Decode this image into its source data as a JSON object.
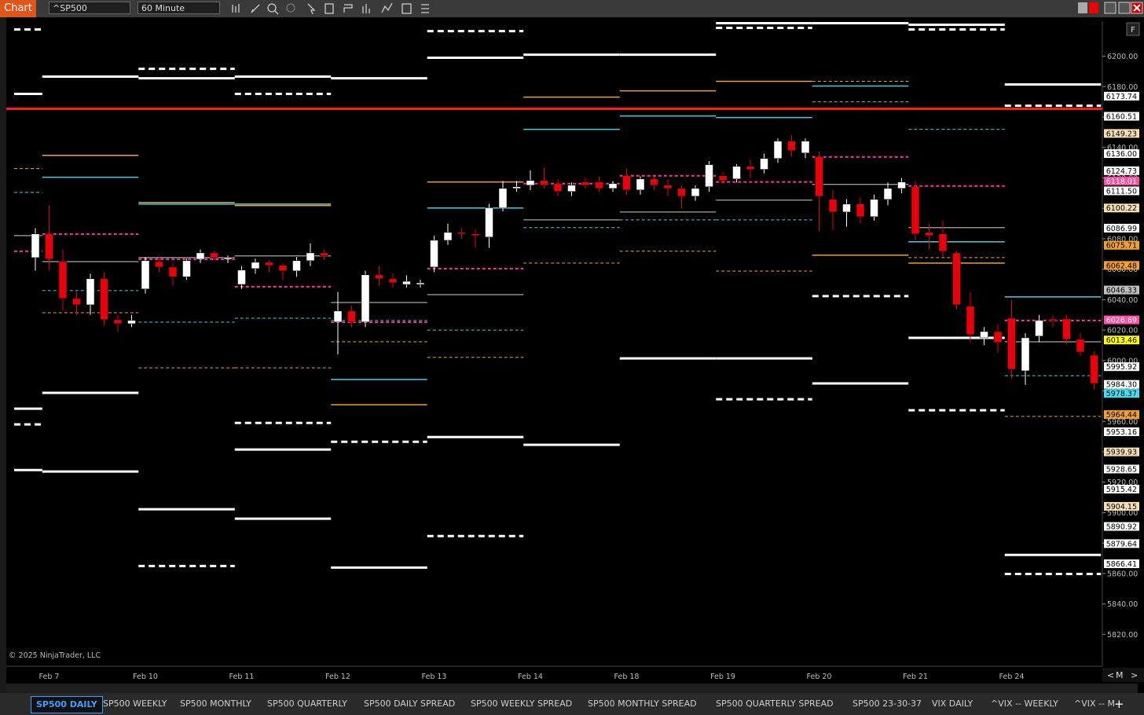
{
  "toolbar": {
    "app": "Chart",
    "symbol": "^SP500",
    "interval": "60 Minute"
  },
  "chart_data": {
    "type": "candlestick",
    "copyright": "© 2025 NinjaTrader, LLC",
    "ylim": [
      5799,
      6223
    ],
    "yticks": [
      {
        "value": 6200,
        "label": "6200.00"
      },
      {
        "value": 6180,
        "label": "6180.00"
      },
      {
        "value": 6160,
        "label": "6160.00"
      },
      {
        "value": 6140,
        "label": "6140.00"
      },
      {
        "value": 6120,
        "label": "6120.00"
      },
      {
        "value": 6100,
        "label": "6100.00"
      },
      {
        "value": 6080,
        "label": "6080.00"
      },
      {
        "value": 6060,
        "label": "6060.00"
      },
      {
        "value": 6040,
        "label": "6040.00"
      },
      {
        "value": 6020,
        "label": "6020.00"
      },
      {
        "value": 6000,
        "label": "6000.00"
      },
      {
        "value": 5980,
        "label": "5980.00"
      },
      {
        "value": 5960,
        "label": "5960.00"
      },
      {
        "value": 5940,
        "label": "5940.00"
      },
      {
        "value": 5920,
        "label": "5920.00"
      },
      {
        "value": 5900,
        "label": "5900.00"
      },
      {
        "value": 5880,
        "label": "5880.00"
      },
      {
        "value": 5860,
        "label": "5860.00"
      },
      {
        "value": 5840,
        "label": "5840.00"
      },
      {
        "value": 5820,
        "label": "5820.00"
      }
    ],
    "grid": false,
    "up_color": "#ffffff",
    "down_color": "#e8000b",
    "categories": [
      null,
      "Feb 7",
      null,
      null,
      null,
      null,
      null,
      null,
      "Feb 10",
      null,
      null,
      null,
      null,
      null,
      null,
      "Feb 11",
      null,
      null,
      null,
      null,
      null,
      null,
      "Feb 12",
      null,
      null,
      null,
      null,
      null,
      null,
      "Feb 13",
      null,
      null,
      null,
      null,
      null,
      null,
      "Feb 14",
      null,
      null,
      null,
      null,
      null,
      null,
      "Feb 18",
      null,
      null,
      null,
      null,
      null,
      null,
      "Feb 19",
      null,
      null,
      null,
      null,
      null,
      null,
      "Feb 20",
      null,
      null,
      null,
      null,
      null,
      null,
      "Feb 21",
      null,
      null,
      null,
      null,
      null,
      null,
      "Feb 24",
      null,
      null,
      null,
      null,
      null,
      null
    ],
    "open": [
      6067.6,
      6083.1,
      6065.0,
      6040.7,
      6036.6,
      6053.7,
      6026.8,
      6024.2,
      6047.0,
      6065.0,
      6061.4,
      6055.0,
      6066.6,
      6070.7,
      6066.6,
      6050.0,
      6060.4,
      6064.5,
      6062.5,
      6058.9,
      6065.6,
      6070.7,
      6025.3,
      6032.5,
      6025.3,
      6056.3,
      6053.7,
      6050.0,
      6050.0,
      6061.4,
      6079.0,
      6084.2,
      6083.2,
      6081.1,
      6100.2,
      6113.1,
      6115.2,
      6118.3,
      6116.2,
      6111.1,
      6117.3,
      6117.3,
      6113.1,
      6121.4,
      6112.1,
      6119.3,
      6115.2,
      6113.1,
      6108.0,
      6114.2,
      6121.4,
      6119.3,
      6127.6,
      6125.6,
      6132.8,
      6144.2,
      6136.4,
      6133.8,
      6105.9,
      6097.6,
      6102.8,
      6094.5,
      6105.9,
      6113.1,
      6114.2,
      6084.2,
      6083.2,
      6070.7,
      6035.6,
      6014.9,
      6019.0,
      6027.8,
      5993.2,
      6016.0,
      6027.3,
      6027.3,
      6013.9,
      6003.5
    ],
    "high": [
      6087,
      6102,
      6073,
      6045,
      6057,
      6058,
      6030,
      6030,
      6068,
      6068,
      6064,
      6067,
      6073,
      6072,
      6069,
      6062,
      6067,
      6066,
      6064,
      6068,
      6077,
      6073,
      6045,
      6036,
      6059,
      6062,
      6057,
      6056,
      6053,
      6082,
      6090,
      6087,
      6086,
      6103,
      6118,
      6118,
      6125,
      6127,
      6119,
      6117,
      6120,
      6121,
      6118,
      6126,
      6121,
      6121,
      6119,
      6115,
      6115,
      6131,
      6124,
      6129,
      6132,
      6136,
      6146,
      6148,
      6146,
      6137,
      6112,
      6106,
      6107,
      6109,
      6117,
      6120,
      6118,
      6090,
      6092,
      6072,
      6045,
      6022,
      6024,
      6040,
      6018,
      6030,
      6030,
      6030,
      6018,
      6006
    ],
    "low": [
      6059,
      6059,
      6033,
      6030,
      6030,
      6023,
      6019,
      6022,
      6044,
      6058,
      6049,
      6053,
      6064,
      6066,
      6064,
      6047,
      6057,
      6058,
      6053,
      6055,
      6062,
      6066,
      6004,
      6022,
      6022,
      6049,
      6048,
      6048,
      6048,
      6058,
      6076,
      6080,
      6074,
      6074,
      6098,
      6111,
      6112,
      6113,
      6108,
      6108,
      6113,
      6111,
      6111,
      6109,
      6109,
      6112,
      6108,
      6100,
      6105,
      6111,
      6116,
      6117,
      6120,
      6123,
      6130,
      6134,
      6133,
      6085,
      6086,
      6088,
      6090,
      6092,
      6102,
      6110,
      6079,
      6073,
      6068,
      6034,
      6012,
      6010,
      6005,
      5988,
      5984,
      6012,
      6022,
      6011,
      6003,
      5981
    ],
    "close": [
      6083.2,
      6066.6,
      6040.8,
      6036.6,
      6053.7,
      6026.8,
      6024.2,
      6026.3,
      6065.6,
      6061.4,
      6055.0,
      6065.6,
      6070.7,
      6067.6,
      6067.6,
      6059.4,
      6064.5,
      6062.5,
      6058.9,
      6065.6,
      6070.7,
      6068.7,
      6032.5,
      6025.3,
      6056.3,
      6053.7,
      6051.1,
      6052.0,
      6051.0,
      6079.0,
      6084.2,
      6083.2,
      6082.1,
      6100.2,
      6113.1,
      6114.2,
      6118.3,
      6115.2,
      6111.1,
      6115.2,
      6115.2,
      6113.1,
      6116.2,
      6112.1,
      6119.3,
      6115.2,
      6113.1,
      6108.0,
      6113.1,
      6128.7,
      6118.3,
      6127.6,
      6125.6,
      6132.8,
      6144.2,
      6138.0,
      6144.2,
      6108.0,
      6097.6,
      6102.8,
      6094.5,
      6105.9,
      6113.1,
      6117.3,
      6083.2,
      6082.1,
      6071.8,
      6036.6,
      6017.0,
      6019.0,
      6011.8,
      5994.2,
      6014.9,
      6026.3,
      6026.3,
      6013.9,
      6005.6,
      5984.9
    ],
    "level_sets": [
      {
        "color": "#ffffff",
        "width": 3,
        "dash": false,
        "values": [
          6175.2,
          6186.6,
          6185.5,
          6186.6,
          6185.5,
          6199.0,
          6201.0,
          6201.0,
          6221.7,
          6221.7,
          6220.7,
          6181.4
        ]
      },
      {
        "color": "#ffffff",
        "width": 3,
        "dash": true,
        "values": [
          6217.6,
          null,
          6191.7,
          6175.2,
          null,
          6216.5,
          null,
          null,
          6218.6,
          null,
          6217.6,
          6167.4
        ]
      },
      {
        "color": "#ffffff",
        "width": 3,
        "dash": false,
        "values": [
          5968.3,
          5978.7,
          5902.2,
          5941.5,
          5863.9,
          5949.7,
          5944.6,
          6001.4,
          6001.4,
          5984.9,
          6014.9,
          5872.2
        ]
      },
      {
        "color": "#ffffff",
        "width": 3,
        "dash": true,
        "values": [
          5958.0,
          null,
          5864.9,
          5959.0,
          5946.6,
          5884.6,
          null,
          null,
          5974.5,
          6042.3,
          5967.3,
          5859.7
        ]
      },
      {
        "color": "#ffffff",
        "width": 3,
        "dash": false,
        "values": [
          5928.0,
          5927.0,
          null,
          5896.0,
          null,
          null,
          null,
          null,
          null,
          null,
          null,
          null
        ]
      },
      {
        "color": "#f0a030",
        "width": 1.5,
        "dash": false,
        "values": [
          null,
          6134.8,
          6103.8,
          6101.8,
          5970.9,
          6117.3,
          6173.1,
          6177.2,
          6183.5,
          6069.2,
          6064.0,
          null
        ]
      },
      {
        "color": "#f0a030",
        "width": 1,
        "dash": true,
        "values": [
          6126.1,
          6031.4,
          5995.2,
          5995.2,
          6012.3,
          6002.0,
          6064.0,
          6071.8,
          6058.8,
          6183.5,
          6067.6,
          5963.2
        ]
      },
      {
        "color": "#40d0e0",
        "width": 1.5,
        "dash": false,
        "values": [
          null,
          6120.4,
          6102.8,
          6102.8,
          5987.5,
          6100.2,
          6151.9,
          6160.7,
          6159.7,
          6180.4,
          6078.0,
          6041.8
        ]
      },
      {
        "color": "#40d0e0",
        "width": 1,
        "dash": true,
        "values": [
          6110.5,
          6045.9,
          6025.2,
          6027.8,
          6026.3,
          6020.0,
          6087.3,
          6092.4,
          6092.4,
          6170.0,
          6151.9,
          5990.0
        ]
      },
      {
        "color": "#d0d0d0",
        "width": 1,
        "dash": false,
        "values": [
          6082.1,
          6065.0,
          6067.6,
          6068.7,
          6038.1,
          6043.3,
          6092.4,
          6097.6,
          6105.4,
          6115.7,
          6087.3,
          6012.3
        ]
      },
      {
        "color": "#ff2fa0",
        "width": 2,
        "dash": true,
        "values": [
          6071.8,
          6083.1,
          6066.6,
          6048.5,
          6025.2,
          6060.4,
          6116.2,
          6121.4,
          6117.3,
          6133.8,
          6114.7,
          6026.3
        ]
      }
    ],
    "hline": {
      "value": 6165.4,
      "color": "#ff1a1a"
    },
    "markers": [
      {
        "value": 6173.74,
        "label": "6173.74",
        "color": "#ffffff"
      },
      {
        "value": 6160.51,
        "label": "6160.51",
        "color": "#ffffff"
      },
      {
        "value": 6149.23,
        "label": "6149.23",
        "color": "#f5deb3"
      },
      {
        "value": 6136,
        "label": "6136.00",
        "color": "#ffffff"
      },
      {
        "value": 6124.73,
        "label": "6124.73",
        "color": "#ffffff"
      },
      {
        "value": 6118.01,
        "label": "6118.01",
        "color": "#ff4fa3"
      },
      {
        "value": 6111.5,
        "label": "6111.50",
        "color": "#ffffff"
      },
      {
        "value": 6100.22,
        "label": "6100.22",
        "color": "#f5deb3"
      },
      {
        "value": 6086.99,
        "label": "6086.99",
        "color": "#ffffff"
      },
      {
        "value": 6075.71,
        "label": "6075.71",
        "color": "#f0a030"
      },
      {
        "value": 6062.48,
        "label": "6062.48",
        "color": "#f0a030"
      },
      {
        "value": 6046.33,
        "label": "6046.33",
        "color": "#c0c0c0"
      },
      {
        "value": 6026.69,
        "label": "6026.69",
        "color": "#ff4fa3"
      },
      {
        "value": 6013.46,
        "label": "6013.46",
        "color": "#ffff00"
      },
      {
        "value": 5995.92,
        "label": "5995.92",
        "color": "#ffffff"
      },
      {
        "value": 5984.3,
        "label": "5984.30",
        "color": "#ffffff"
      },
      {
        "value": 5978.37,
        "label": "5978.37",
        "color": "#40e0f0"
      },
      {
        "value": 5964.44,
        "label": "5964.44",
        "color": "#f0a030"
      },
      {
        "value": 5953.16,
        "label": "5953.16",
        "color": "#ffffff"
      },
      {
        "value": 5939.93,
        "label": "5939.93",
        "color": "#f5deb3"
      },
      {
        "value": 5928.65,
        "label": "5928.65",
        "color": "#ffffff"
      },
      {
        "value": 5915.42,
        "label": "5915.42",
        "color": "#ffffff"
      },
      {
        "value": 5904.15,
        "label": "5904.15",
        "color": "#f5deb3"
      },
      {
        "value": 5890.92,
        "label": "5890.92",
        "color": "#ffffff"
      },
      {
        "value": 5879.64,
        "label": "5879.64",
        "color": "#ffffff"
      },
      {
        "value": 5866.41,
        "label": "5866.41",
        "color": "#ffffff"
      }
    ]
  },
  "controls": {
    "axis_button": "F",
    "scroll_left": "<",
    "scale": "M",
    "scroll_right": ">",
    "add_tab": "+"
  },
  "tabs": [
    "SP500 DAILY",
    "SP500 WEEKLY",
    "SP500 MONTHLY",
    "SP500 QUARTERLY",
    "SP500 DAILY SPREAD",
    "SP500 WEEKLY SPREAD",
    "SP500 MONTHLY SPREAD",
    "SP500 QUARTERLY SPREAD",
    "SP500 23-30-37",
    "VIX DAILY",
    "^VIX -- WEEKLY",
    "^VIX -- M"
  ]
}
